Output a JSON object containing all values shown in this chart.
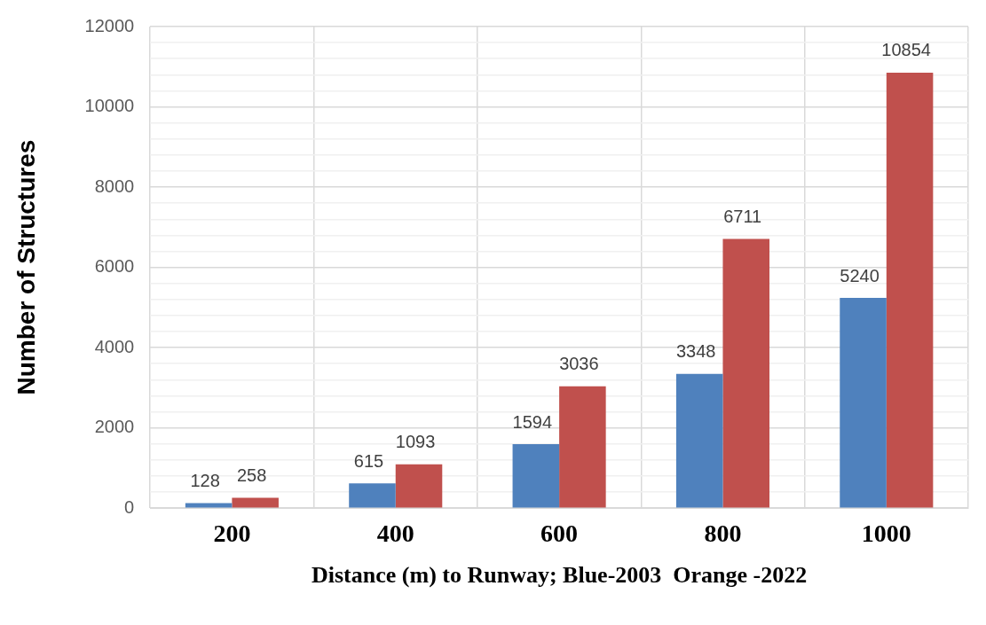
{
  "chart_data": {
    "type": "bar",
    "xlabel": "Distance (m) to Runway; Blue-2003  Orange -2022",
    "ylabel": "Number of Structures",
    "categories": [
      "200",
      "400",
      "600",
      "800",
      "1000"
    ],
    "series": [
      {
        "color": "#4f81bd",
        "values": [
          128,
          615,
          1594,
          3348,
          5240
        ]
      },
      {
        "color": "#c0504d",
        "values": [
          258,
          1093,
          3036,
          6711,
          10854
        ]
      }
    ],
    "ylim": [
      0,
      12000
    ],
    "yticks": [
      0,
      {
        "value": 400,
        "label": null
      },
      {
        "value": 800,
        "label": null
      },
      {
        "value": 1200,
        "label": null
      },
      {
        "value": 1600,
        "label": null
      },
      2000,
      {
        "value": 2400,
        "label": null
      },
      {
        "value": 2800,
        "label": null
      },
      {
        "value": 3200,
        "label": null
      },
      {
        "value": 3600,
        "label": null
      },
      4000,
      {
        "value": 4400,
        "label": null
      },
      {
        "value": 4800,
        "label": null
      },
      {
        "value": 5200,
        "label": null
      },
      {
        "value": 5600,
        "label": null
      },
      6000,
      {
        "value": 6400,
        "label": null
      },
      {
        "value": 6800,
        "label": null
      },
      {
        "value": 7200,
        "label": null
      },
      {
        "value": 7600,
        "label": null
      },
      8000,
      {
        "value": 8400,
        "label": null
      },
      {
        "value": 8800,
        "label": null
      },
      {
        "value": 9200,
        "label": null
      },
      {
        "value": 9600,
        "label": null
      },
      10000,
      {
        "value": 10400,
        "label": null
      },
      {
        "value": 10800,
        "label": null
      },
      {
        "value": 11200,
        "label": null
      },
      {
        "value": 11600,
        "label": null
      },
      12000
    ],
    "grid": true,
    "legend": false,
    "data_labels": true
  }
}
